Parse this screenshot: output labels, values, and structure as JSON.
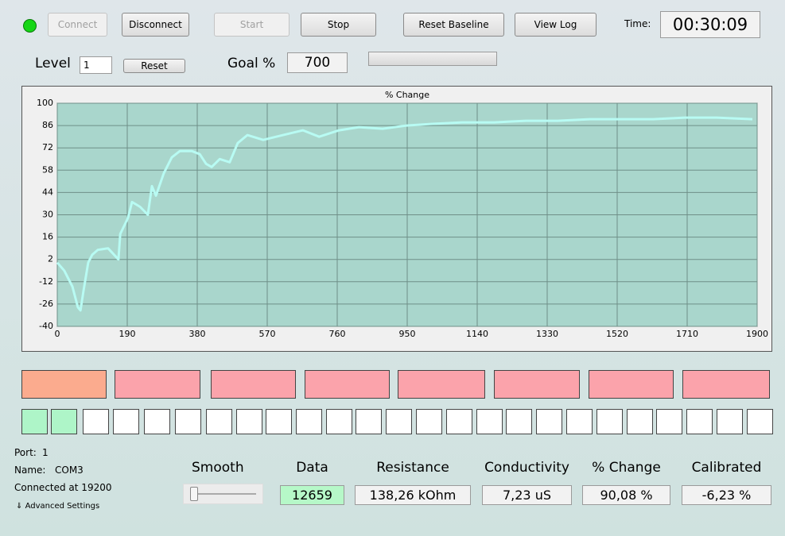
{
  "toolbar": {
    "connect": "Connect",
    "disconnect": "Disconnect",
    "start": "Start",
    "stop": "Stop",
    "reset_baseline": "Reset Baseline",
    "view_log": "View Log",
    "time_label": "Time:",
    "time": "00:30:09"
  },
  "level": {
    "label": "Level",
    "value": "1",
    "reset": "Reset"
  },
  "goal": {
    "label": "Goal %",
    "value": "700"
  },
  "connection": {
    "port_label": "Port:",
    "port": "1",
    "name_label": "Name:",
    "name": "COM3",
    "status": "Connected at 19200",
    "advanced": "Advanced Settings"
  },
  "smooth": "Smooth",
  "readouts": [
    {
      "label": "Data",
      "value": "12659"
    },
    {
      "label": "Resistance",
      "value": "138,26 kOhm"
    },
    {
      "label": "Conductivity",
      "value": "7,23 uS"
    },
    {
      "label": "% Change",
      "value": "90,08 %"
    },
    {
      "label": "Calibrated",
      "value": "-6,23 %"
    }
  ],
  "chart_data": {
    "type": "line",
    "title": "% Change",
    "color": "#b8fbf3",
    "x": [
      0,
      19,
      41,
      56,
      63,
      71,
      84,
      95,
      110,
      138,
      166,
      171,
      192,
      203,
      225,
      246,
      257,
      268,
      289,
      311,
      333,
      365,
      387,
      404,
      419,
      441,
      468,
      490,
      516,
      559,
      613,
      667,
      711,
      765,
      819,
      883,
      948,
      1013,
      1099,
      1186,
      1272,
      1358,
      1445,
      1531,
      1617,
      1704,
      1790,
      1887
    ],
    "values": [
      0,
      -5,
      -15,
      -28,
      -30,
      -18,
      0,
      5,
      8,
      9,
      2,
      18,
      28,
      38,
      35,
      30,
      48,
      42,
      56,
      66,
      70,
      70,
      68,
      62,
      60,
      65,
      63,
      75,
      80,
      77,
      80,
      83,
      79,
      83,
      85,
      84,
      86,
      87,
      88,
      88,
      89,
      89,
      90,
      90,
      90,
      91,
      91,
      90
    ],
    "xlim": [
      0,
      1900
    ],
    "xticks": [
      0,
      190,
      380,
      570,
      760,
      950,
      1140,
      1330,
      1520,
      1710,
      1900
    ],
    "ylim": [
      -40,
      100
    ],
    "yticks": [
      -40,
      -26,
      -12,
      2,
      16,
      30,
      44,
      58,
      72,
      86,
      100
    ],
    "grid": true
  }
}
